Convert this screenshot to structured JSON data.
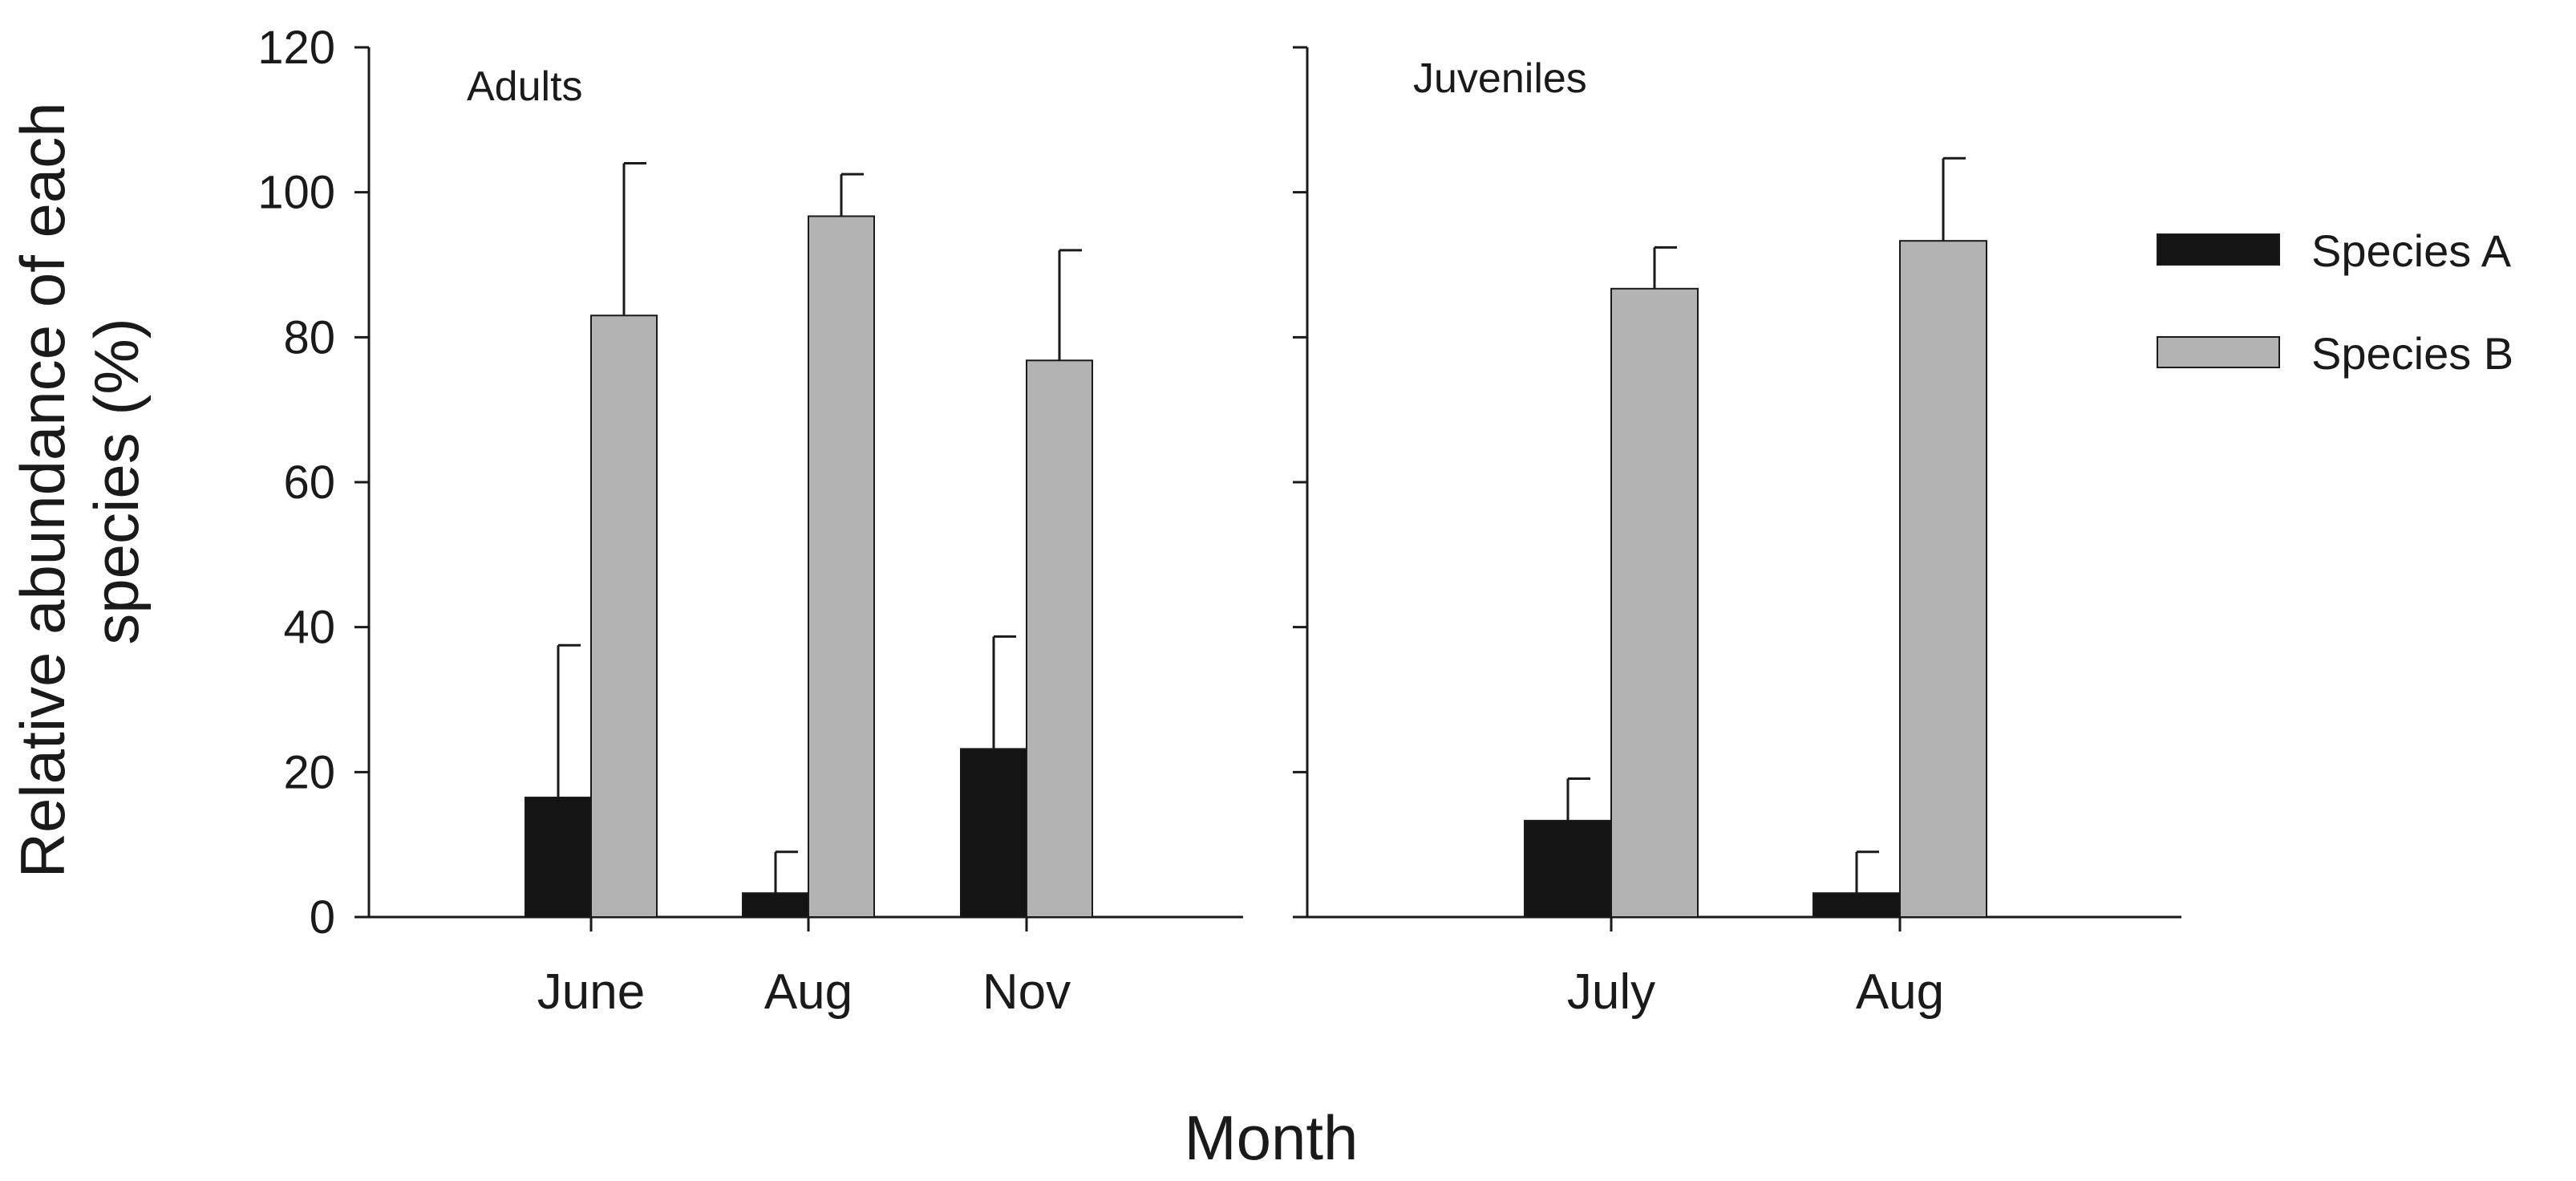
{
  "chart_data": {
    "type": "bar",
    "ylabel_lines": [
      "Relative abundance of each",
      "species (%)"
    ],
    "xlabel": "Month",
    "ylim": [
      0,
      120
    ],
    "yticks": [
      0,
      20,
      40,
      60,
      80,
      100,
      120
    ],
    "series": [
      {
        "name": "Species A",
        "color": "#141414"
      },
      {
        "name": "Species B",
        "color": "#b3b3b3"
      }
    ],
    "panels": [
      {
        "title": "Adults",
        "categories": [
          "June",
          "Aug",
          "Nov"
        ],
        "values": {
          "Species A": [
            16.5,
            3.3,
            23.2
          ],
          "Species B": [
            83.0,
            96.7,
            76.8
          ]
        },
        "errors": {
          "Species A": [
            21.0,
            5.7,
            15.5
          ],
          "Species B": [
            21.0,
            5.8,
            15.2
          ]
        }
      },
      {
        "title": "Juveniles",
        "categories": [
          "July",
          "Aug"
        ],
        "values": {
          "Species A": [
            13.3,
            3.3
          ],
          "Species B": [
            86.7,
            93.3
          ]
        },
        "errors": {
          "Species A": [
            5.8,
            5.7
          ],
          "Species B": [
            5.7,
            11.4
          ]
        }
      }
    ]
  }
}
